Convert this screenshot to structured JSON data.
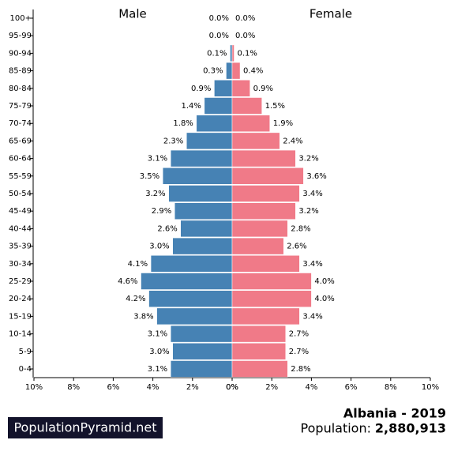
{
  "chart_data": {
    "type": "pyramid",
    "categories": [
      "100+",
      "95-99",
      "90-94",
      "85-89",
      "80-84",
      "75-79",
      "70-74",
      "65-69",
      "60-64",
      "55-59",
      "50-54",
      "45-49",
      "40-44",
      "35-39",
      "30-34",
      "25-29",
      "20-24",
      "15-19",
      "10-14",
      "5-9",
      "0-4"
    ],
    "series": [
      {
        "name": "Male",
        "color": "#4682b4",
        "values": [
          0.0,
          0.0,
          0.1,
          0.3,
          0.9,
          1.4,
          1.8,
          2.3,
          3.1,
          3.5,
          3.2,
          2.9,
          2.6,
          3.0,
          4.1,
          4.6,
          4.2,
          3.8,
          3.1,
          3.0,
          3.1
        ],
        "value_labels": [
          "0.0%",
          "0.0%",
          "0.1%",
          "0.3%",
          "0.9%",
          "1.4%",
          "1.8%",
          "2.3%",
          "3.1%",
          "3.5%",
          "3.2%",
          "2.9%",
          "2.6%",
          "3.0%",
          "4.1%",
          "4.6%",
          "4.2%",
          "3.8%",
          "3.1%",
          "3.0%",
          "3.1%"
        ]
      },
      {
        "name": "Female",
        "color": "#f07a88",
        "values": [
          0.0,
          0.0,
          0.1,
          0.4,
          0.9,
          1.5,
          1.9,
          2.4,
          3.2,
          3.6,
          3.4,
          3.2,
          2.8,
          2.6,
          3.4,
          4.0,
          4.0,
          3.4,
          2.7,
          2.7,
          2.8
        ],
        "value_labels": [
          "0.0%",
          "0.0%",
          "0.1%",
          "0.4%",
          "0.9%",
          "1.5%",
          "1.9%",
          "2.4%",
          "3.2%",
          "3.6%",
          "3.4%",
          "3.2%",
          "2.8%",
          "2.6%",
          "3.4%",
          "4.0%",
          "4.0%",
          "3.4%",
          "2.7%",
          "2.7%",
          "2.8%"
        ]
      }
    ],
    "xlim": [
      0,
      10
    ],
    "xticks": [
      {
        "value": 0,
        "label": "0%"
      },
      {
        "value": 2,
        "label": "2%"
      },
      {
        "value": 4,
        "label": "4%"
      },
      {
        "value": 6,
        "label": "6%"
      },
      {
        "value": 8,
        "label": "8%"
      },
      {
        "value": 10,
        "label": "10%"
      }
    ],
    "title": "Albania - 2019",
    "population_label": "Population:",
    "population": "2,880,913",
    "brand": "PopulationPyramid.net"
  }
}
